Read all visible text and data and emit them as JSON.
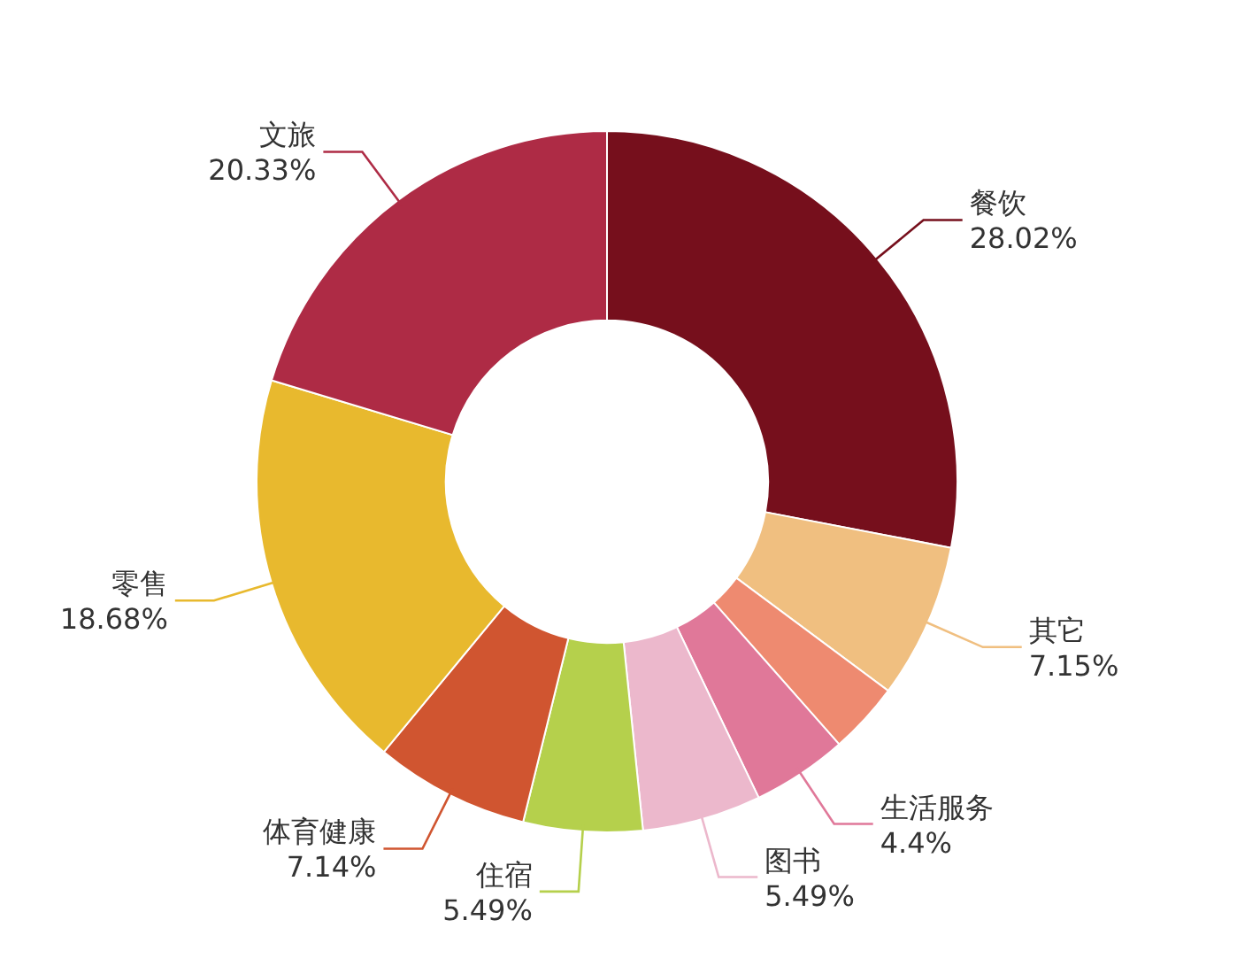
{
  "chart_data": {
    "type": "donut",
    "categories": [
      "餐饮",
      "其它",
      null,
      "生活服务",
      "图书",
      "住宿",
      "体育健康",
      "零售",
      "文旅"
    ],
    "values": [
      28.02,
      7.15,
      3.3,
      4.4,
      5.49,
      5.49,
      7.14,
      18.68,
      20.33
    ],
    "value_labels": [
      "28.02%",
      "7.15%",
      null,
      "4.4%",
      "5.49%",
      "5.49%",
      "7.14%",
      "18.68%",
      "20.33%"
    ],
    "colors": [
      "#760f1c",
      "#f0bf80",
      "#ee8a70",
      "#e07899",
      "#ecb8cc",
      "#b5d04c",
      "#d05530",
      "#e8b92e",
      "#ae2b45"
    ],
    "legend": false
  }
}
